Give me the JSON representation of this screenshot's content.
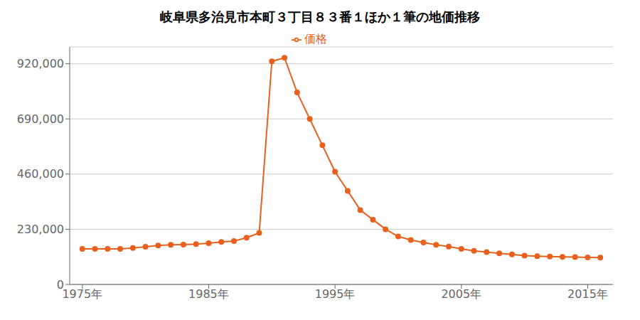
{
  "chart_data": {
    "type": "line",
    "title": "岐阜県多治見市本町３丁目８３番１ほか１筆の地価推移",
    "x": [
      1975,
      1976,
      1977,
      1978,
      1979,
      1980,
      1981,
      1982,
      1983,
      1984,
      1985,
      1986,
      1987,
      1988,
      1989,
      1990,
      1991,
      1992,
      1993,
      1994,
      1995,
      1996,
      1997,
      1998,
      1999,
      2000,
      2001,
      2002,
      2003,
      2004,
      2005,
      2006,
      2007,
      2008,
      2009,
      2010,
      2011,
      2012,
      2013,
      2014,
      2015,
      2016
    ],
    "series": [
      {
        "name": "価格",
        "color": "#e8601c",
        "marker": "circle",
        "values": [
          148000,
          148000,
          148000,
          148000,
          152000,
          157000,
          162000,
          165000,
          166000,
          168000,
          172000,
          177000,
          181000,
          195000,
          215000,
          930000,
          945000,
          800000,
          690000,
          580000,
          470000,
          390000,
          310000,
          270000,
          230000,
          200000,
          185000,
          175000,
          165000,
          158000,
          148000,
          140000,
          135000,
          130000,
          125000,
          120000,
          118000,
          116000,
          115000,
          114000,
          113000,
          112000
        ]
      }
    ],
    "xlim": [
      1974,
      2017
    ],
    "xticks": [
      {
        "value": 1975,
        "label": "1975年"
      },
      {
        "value": 1985,
        "label": "1985年"
      },
      {
        "value": 1995,
        "label": "1995年"
      },
      {
        "value": 2005,
        "label": "2005年"
      },
      {
        "value": 2015,
        "label": "2015年"
      }
    ],
    "ylim": [
      0,
      990000
    ],
    "yticks": [
      0,
      {
        "value": 230000,
        "label": "230,000"
      },
      {
        "value": 460000,
        "label": "460,000"
      },
      {
        "value": 690000,
        "label": "690,000"
      },
      {
        "value": 920000,
        "label": "920,000"
      }
    ],
    "grid": "y",
    "legend": "top"
  }
}
